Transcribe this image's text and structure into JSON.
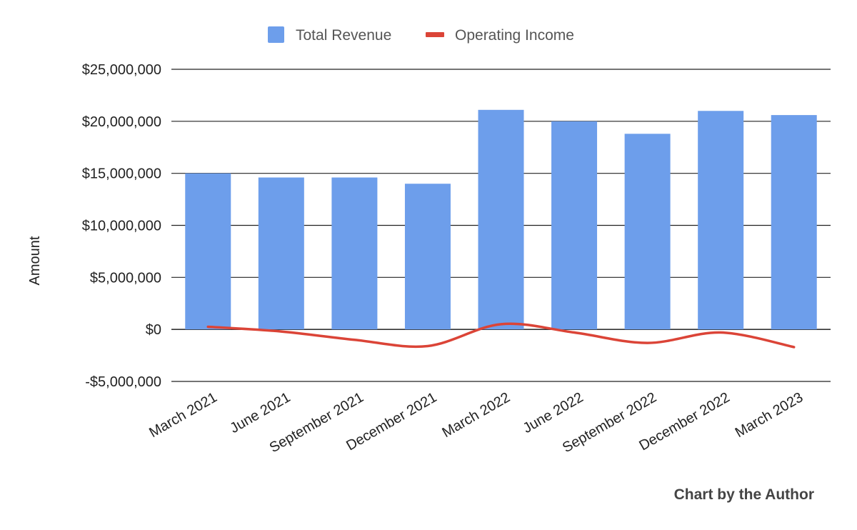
{
  "chart_data": {
    "type": "bar",
    "categories": [
      "March 2021",
      "June 2021",
      "September 2021",
      "December 2021",
      "March 2022",
      "June 2022",
      "September 2022",
      "December 2022",
      "March 2023"
    ],
    "series": [
      {
        "name": "Total Revenue",
        "type": "bar",
        "color": "#6d9eeb",
        "values": [
          15000000,
          14600000,
          14600000,
          14000000,
          21100000,
          20000000,
          18800000,
          21000000,
          20600000
        ]
      },
      {
        "name": "Operating Income",
        "type": "line",
        "color": "#db4437",
        "values": [
          250000,
          -200000,
          -1000000,
          -1600000,
          500000,
          -300000,
          -1300000,
          -300000,
          -1700000
        ]
      }
    ],
    "ylabel": "Amount",
    "ylim": [
      -5000000,
      25000000
    ],
    "yticks": [
      -5000000,
      0,
      5000000,
      10000000,
      15000000,
      20000000,
      25000000
    ],
    "ytick_labels": [
      "-$5,000,000",
      "$0",
      "$5,000,000",
      "$10,000,000",
      "$15,000,000",
      "$20,000,000",
      "$25,000,000"
    ],
    "grid": true,
    "legend_position": "top"
  },
  "credit": "Chart by the Author"
}
